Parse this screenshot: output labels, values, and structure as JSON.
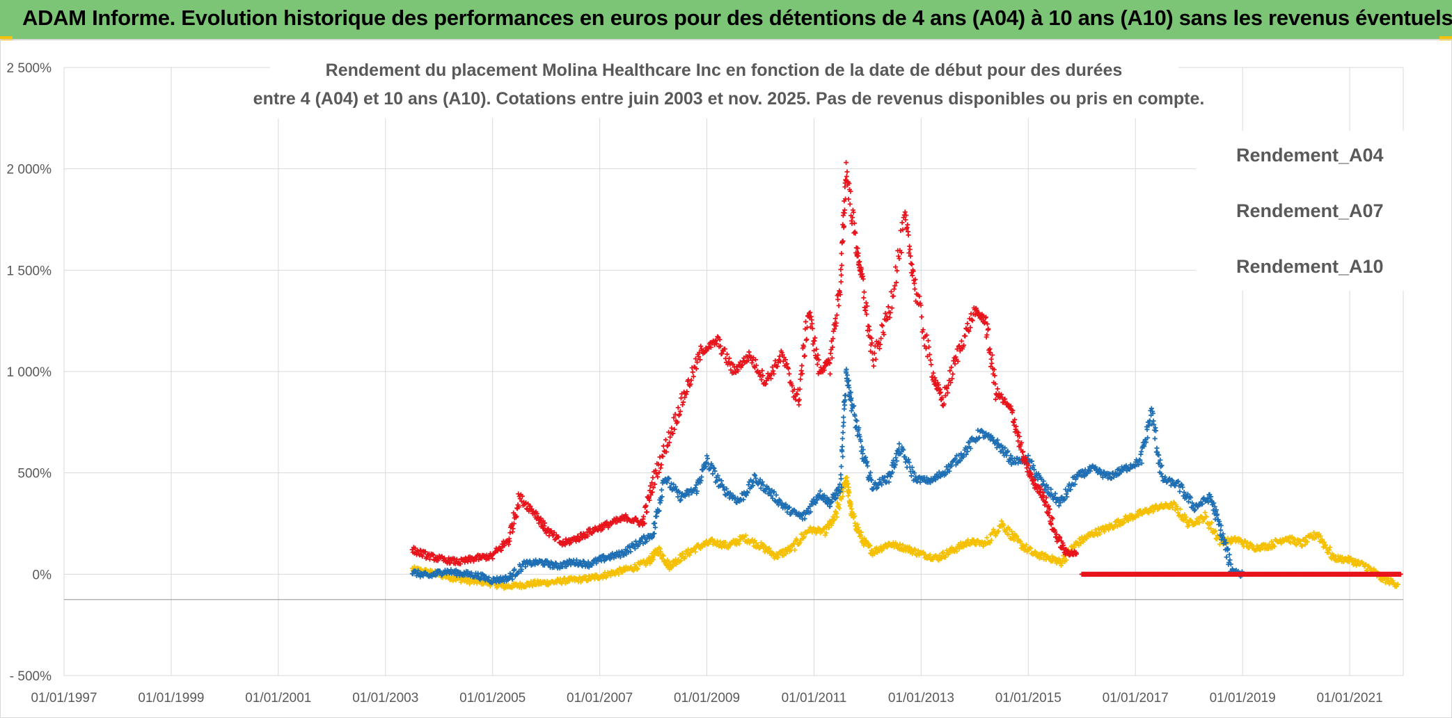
{
  "banner": {
    "title": "ADAM Informe. Evolution historique des performances en euros pour des détentions de 4 ans (A04) à 10 ans (A10) sans les revenus éventuels",
    "background_color": "#7cc576"
  },
  "chart_data": {
    "type": "scatter",
    "title_line1": "Rendement du placement Molina Healthcare Inc en fonction de la date de début pour des durées",
    "title_line2": "entre 4 (A04) et 10 ans (A10). Cotations entre juin 2003 et nov. 2025. Pas de revenus disponibles ou pris en compte.",
    "xlabel": "",
    "ylabel": "",
    "xlim": [
      1997.0,
      2022.0
    ],
    "ylim": [
      -500,
      2500
    ],
    "grid": true,
    "legend_position": "right",
    "y_ticks": [
      {
        "value": 2500,
        "label": "2 500%"
      },
      {
        "value": 2000,
        "label": "2 000%"
      },
      {
        "value": 1500,
        "label": "1 500%"
      },
      {
        "value": 1000,
        "label": "1 000%"
      },
      {
        "value": 500,
        "label": "500%"
      },
      {
        "value": 0,
        "label": "0%"
      },
      {
        "value": -500,
        "label": "- 500%"
      }
    ],
    "x_ticks": [
      {
        "value": 1997,
        "label": "01/01/1997"
      },
      {
        "value": 1999,
        "label": "01/01/1999"
      },
      {
        "value": 2001,
        "label": "01/01/2001"
      },
      {
        "value": 2003,
        "label": "01/01/2003"
      },
      {
        "value": 2005,
        "label": "01/01/2005"
      },
      {
        "value": 2007,
        "label": "01/01/2007"
      },
      {
        "value": 2009,
        "label": "01/01/2009"
      },
      {
        "value": 2011,
        "label": "01/01/2011"
      },
      {
        "value": 2013,
        "label": "01/01/2013"
      },
      {
        "value": 2015,
        "label": "01/01/2015"
      },
      {
        "value": 2017,
        "label": "01/01/2017"
      },
      {
        "value": 2019,
        "label": "01/01/2019"
      },
      {
        "value": 2021,
        "label": "01/01/2021"
      }
    ],
    "series": [
      {
        "name": "Rendement_A04",
        "color": "#f5c000",
        "points": [
          [
            2003.5,
            25
          ],
          [
            2003.8,
            10
          ],
          [
            2004.0,
            0
          ],
          [
            2004.3,
            -20
          ],
          [
            2004.6,
            -35
          ],
          [
            2004.9,
            -40
          ],
          [
            2005.2,
            -60
          ],
          [
            2005.5,
            -55
          ],
          [
            2005.8,
            -45
          ],
          [
            2006.1,
            -40
          ],
          [
            2006.4,
            -30
          ],
          [
            2006.7,
            -25
          ],
          [
            2007.0,
            -10
          ],
          [
            2007.3,
            10
          ],
          [
            2007.6,
            30
          ],
          [
            2007.9,
            60
          ],
          [
            2008.1,
            120
          ],
          [
            2008.3,
            40
          ],
          [
            2008.5,
            80
          ],
          [
            2008.8,
            130
          ],
          [
            2009.1,
            160
          ],
          [
            2009.4,
            140
          ],
          [
            2009.7,
            180
          ],
          [
            2010.0,
            140
          ],
          [
            2010.3,
            90
          ],
          [
            2010.6,
            130
          ],
          [
            2010.9,
            220
          ],
          [
            2011.2,
            210
          ],
          [
            2011.4,
            280
          ],
          [
            2011.6,
            480
          ],
          [
            2011.7,
            300
          ],
          [
            2011.9,
            170
          ],
          [
            2012.1,
            110
          ],
          [
            2012.4,
            150
          ],
          [
            2012.7,
            130
          ],
          [
            2013.0,
            100
          ],
          [
            2013.3,
            80
          ],
          [
            2013.6,
            120
          ],
          [
            2013.9,
            160
          ],
          [
            2014.2,
            150
          ],
          [
            2014.5,
            250
          ],
          [
            2014.8,
            160
          ],
          [
            2015.1,
            100
          ],
          [
            2015.4,
            80
          ],
          [
            2015.6,
            60
          ],
          [
            2015.9,
            150
          ],
          [
            2016.2,
            200
          ],
          [
            2016.5,
            230
          ],
          [
            2016.8,
            270
          ],
          [
            2017.1,
            300
          ],
          [
            2017.4,
            330
          ],
          [
            2017.7,
            340
          ],
          [
            2018.0,
            250
          ],
          [
            2018.3,
            280
          ],
          [
            2018.6,
            160
          ],
          [
            2018.9,
            170
          ],
          [
            2019.2,
            130
          ],
          [
            2019.5,
            140
          ],
          [
            2019.8,
            180
          ],
          [
            2020.1,
            150
          ],
          [
            2020.4,
            200
          ],
          [
            2020.7,
            80
          ],
          [
            2021.0,
            70
          ],
          [
            2021.3,
            40
          ],
          [
            2021.6,
            -20
          ],
          [
            2021.9,
            -50
          ]
        ]
      },
      {
        "name": "Rendement_A07",
        "color": "#1f6fb4",
        "points": [
          [
            2003.5,
            10
          ],
          [
            2003.8,
            -10
          ],
          [
            2004.1,
            15
          ],
          [
            2004.4,
            5
          ],
          [
            2004.7,
            -5
          ],
          [
            2005.0,
            -30
          ],
          [
            2005.3,
            -20
          ],
          [
            2005.6,
            50
          ],
          [
            2005.9,
            60
          ],
          [
            2006.2,
            40
          ],
          [
            2006.5,
            60
          ],
          [
            2006.8,
            50
          ],
          [
            2007.1,
            80
          ],
          [
            2007.4,
            100
          ],
          [
            2007.7,
            150
          ],
          [
            2008.0,
            200
          ],
          [
            2008.2,
            480
          ],
          [
            2008.5,
            380
          ],
          [
            2008.8,
            420
          ],
          [
            2009.0,
            560
          ],
          [
            2009.3,
            420
          ],
          [
            2009.6,
            360
          ],
          [
            2009.9,
            470
          ],
          [
            2010.2,
            400
          ],
          [
            2010.5,
            320
          ],
          [
            2010.8,
            280
          ],
          [
            2011.1,
            400
          ],
          [
            2011.3,
            350
          ],
          [
            2011.5,
            430
          ],
          [
            2011.6,
            1000
          ],
          [
            2011.7,
            850
          ],
          [
            2011.9,
            600
          ],
          [
            2012.1,
            430
          ],
          [
            2012.4,
            480
          ],
          [
            2012.6,
            620
          ],
          [
            2012.9,
            470
          ],
          [
            2013.2,
            460
          ],
          [
            2013.5,
            520
          ],
          [
            2013.8,
            600
          ],
          [
            2014.1,
            700
          ],
          [
            2014.4,
            650
          ],
          [
            2014.7,
            560
          ],
          [
            2015.0,
            560
          ],
          [
            2015.3,
            430
          ],
          [
            2015.6,
            350
          ],
          [
            2015.9,
            480
          ],
          [
            2016.2,
            520
          ],
          [
            2016.5,
            480
          ],
          [
            2016.8,
            520
          ],
          [
            2017.1,
            560
          ],
          [
            2017.3,
            800
          ],
          [
            2017.5,
            470
          ],
          [
            2017.8,
            440
          ],
          [
            2018.1,
            330
          ],
          [
            2018.4,
            380
          ],
          [
            2018.6,
            210
          ],
          [
            2018.8,
            20
          ],
          [
            2019.0,
            0
          ]
        ]
      },
      {
        "name": "Rendement_A10",
        "color": "#e8141c",
        "points": [
          [
            2003.5,
            120
          ],
          [
            2003.8,
            90
          ],
          [
            2004.1,
            70
          ],
          [
            2004.4,
            60
          ],
          [
            2004.7,
            80
          ],
          [
            2005.0,
            90
          ],
          [
            2005.3,
            170
          ],
          [
            2005.5,
            380
          ],
          [
            2005.8,
            300
          ],
          [
            2006.0,
            220
          ],
          [
            2006.3,
            150
          ],
          [
            2006.6,
            180
          ],
          [
            2006.9,
            220
          ],
          [
            2007.2,
            250
          ],
          [
            2007.5,
            280
          ],
          [
            2007.8,
            250
          ],
          [
            2008.0,
            460
          ],
          [
            2008.3,
            680
          ],
          [
            2008.6,
            900
          ],
          [
            2008.9,
            1100
          ],
          [
            2009.2,
            1150
          ],
          [
            2009.5,
            1000
          ],
          [
            2009.8,
            1080
          ],
          [
            2010.1,
            950
          ],
          [
            2010.4,
            1080
          ],
          [
            2010.7,
            850
          ],
          [
            2010.9,
            1300
          ],
          [
            2011.1,
            1000
          ],
          [
            2011.3,
            1050
          ],
          [
            2011.5,
            1450
          ],
          [
            2011.6,
            2000
          ],
          [
            2011.8,
            1600
          ],
          [
            2011.9,
            1450
          ],
          [
            2012.1,
            1050
          ],
          [
            2012.4,
            1300
          ],
          [
            2012.7,
            1750
          ],
          [
            2012.9,
            1400
          ],
          [
            2013.2,
            1000
          ],
          [
            2013.4,
            850
          ],
          [
            2013.7,
            1100
          ],
          [
            2014.0,
            1300
          ],
          [
            2014.2,
            1250
          ],
          [
            2014.4,
            900
          ],
          [
            2014.7,
            800
          ],
          [
            2014.9,
            580
          ],
          [
            2015.1,
            450
          ],
          [
            2015.3,
            380
          ],
          [
            2015.5,
            200
          ],
          [
            2015.7,
            110
          ],
          [
            2015.9,
            100
          ]
        ]
      },
      {
        "name": "Rendement_A10",
        "color": "#e8141c",
        "points": [
          [
            2016.0,
            0
          ],
          [
            2016.5,
            0
          ],
          [
            2017.0,
            0
          ],
          [
            2017.5,
            0
          ],
          [
            2018.0,
            0
          ],
          [
            2018.5,
            0
          ],
          [
            2019.0,
            0
          ],
          [
            2019.5,
            0
          ],
          [
            2020.0,
            0
          ],
          [
            2020.5,
            0
          ],
          [
            2021.0,
            0
          ],
          [
            2021.5,
            0
          ],
          [
            2021.95,
            0
          ]
        ]
      }
    ]
  },
  "legend": {
    "items": [
      {
        "label": "Rendement_A04",
        "color": "#f5c000"
      },
      {
        "label": "Rendement_A07",
        "color": "#1f6fb4"
      },
      {
        "label": "Rendement_A10",
        "color": "#e8141c"
      }
    ]
  }
}
